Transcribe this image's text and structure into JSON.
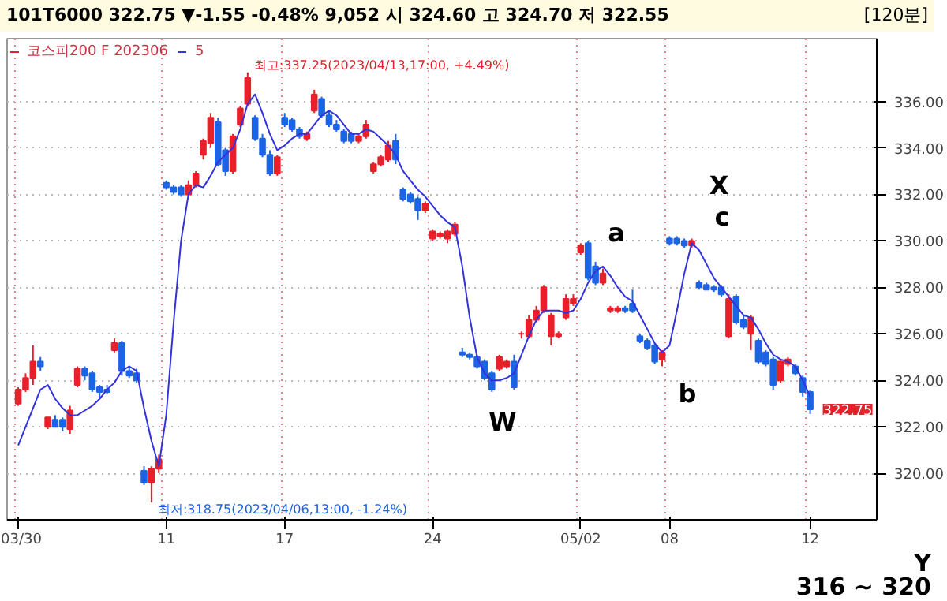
{
  "chart_data": {
    "type": "candlestick",
    "title": "101T6000  322.75  ▼-1.55  -0.48%  9,052  시 324.60  고 324.70  저 322.55",
    "subtitle": "코스피200 F 202306",
    "categories": [
      "03/30",
      null,
      null,
      null,
      null,
      null,
      null,
      null,
      null,
      null,
      null,
      null,
      null,
      null,
      null,
      null,
      null,
      null,
      null,
      null,
      "11",
      null,
      null,
      null,
      null,
      null,
      null,
      null,
      null,
      null,
      null,
      null,
      null,
      null,
      null,
      null,
      "17",
      null,
      null,
      null,
      null,
      null,
      null,
      null,
      null,
      null,
      null,
      null,
      null,
      null,
      null,
      null,
      null,
      null,
      null,
      null,
      "24",
      null,
      null,
      null,
      null,
      null,
      null,
      null,
      null,
      null,
      null,
      null,
      null,
      null,
      null,
      null,
      null,
      null,
      null,
      null,
      "05/02",
      null,
      null,
      null,
      null,
      null,
      null,
      null,
      null,
      null,
      null,
      null,
      "08",
      null,
      null,
      null,
      null,
      null,
      null,
      null,
      null,
      null,
      null,
      null,
      null,
      null,
      null,
      null,
      null,
      null,
      null,
      "12"
    ],
    "ohlc": [
      [
        323.0,
        323.7,
        322.9,
        323.6
      ],
      [
        323.6,
        324.3,
        323.5,
        324.1
      ],
      [
        324.1,
        325.5,
        323.8,
        324.8
      ],
      [
        324.8,
        325.0,
        324.4,
        324.6
      ],
      [
        322.0,
        322.4,
        321.9,
        322.4
      ],
      [
        322.3,
        322.5,
        322.0,
        322.0
      ],
      [
        322.3,
        322.4,
        321.8,
        322.0
      ],
      [
        321.9,
        322.9,
        321.7,
        322.7
      ],
      [
        323.8,
        324.6,
        323.7,
        324.5
      ],
      [
        324.5,
        324.6,
        324.0,
        324.2
      ],
      [
        324.3,
        324.4,
        323.5,
        323.6
      ],
      [
        323.7,
        323.8,
        323.2,
        323.5
      ],
      [
        323.6,
        323.8,
        323.4,
        323.5
      ],
      [
        325.3,
        325.8,
        325.2,
        325.6
      ],
      [
        325.6,
        325.7,
        324.2,
        324.4
      ],
      [
        324.4,
        324.6,
        324.1,
        324.2
      ],
      [
        324.3,
        324.5,
        323.9,
        324.0
      ],
      [
        320.1,
        320.3,
        319.5,
        319.6
      ],
      [
        319.6,
        320.3,
        318.75,
        320.2
      ],
      [
        320.2,
        320.8,
        320.0,
        320.6
      ],
      [
        332.5,
        332.6,
        332.2,
        332.3
      ],
      [
        332.3,
        332.4,
        332.0,
        332.1
      ],
      [
        332.3,
        332.4,
        331.9,
        332.0
      ],
      [
        332.0,
        332.6,
        331.9,
        332.4
      ],
      [
        332.4,
        333.0,
        332.3,
        332.9
      ],
      [
        333.7,
        334.4,
        333.5,
        334.3
      ],
      [
        334.2,
        335.5,
        334.0,
        335.3
      ],
      [
        335.1,
        335.3,
        333.2,
        333.3
      ],
      [
        333.9,
        334.0,
        332.8,
        333.0
      ],
      [
        333.0,
        334.6,
        332.9,
        334.5
      ],
      [
        335.0,
        335.8,
        334.9,
        335.7
      ],
      [
        335.9,
        337.25,
        335.8,
        337.0
      ],
      [
        335.3,
        335.4,
        334.3,
        334.4
      ],
      [
        334.4,
        334.6,
        333.6,
        333.7
      ],
      [
        333.7,
        333.9,
        332.8,
        332.9
      ],
      [
        332.9,
        333.7,
        332.8,
        333.6
      ],
      [
        335.3,
        335.5,
        334.9,
        335.0
      ],
      [
        335.2,
        335.3,
        334.7,
        334.8
      ],
      [
        334.8,
        334.9,
        334.4,
        334.5
      ],
      [
        334.4,
        334.7,
        334.3,
        334.6
      ],
      [
        335.6,
        336.5,
        335.5,
        336.3
      ],
      [
        336.1,
        336.2,
        335.3,
        335.4
      ],
      [
        335.4,
        335.6,
        334.9,
        335.0
      ],
      [
        335.0,
        335.2,
        334.7,
        334.8
      ],
      [
        334.7,
        334.8,
        334.2,
        334.3
      ],
      [
        334.6,
        334.7,
        334.2,
        334.3
      ],
      [
        334.3,
        334.6,
        334.2,
        334.5
      ],
      [
        334.5,
        335.2,
        334.4,
        335.0
      ],
      [
        333.0,
        333.4,
        332.9,
        333.3
      ],
      [
        333.3,
        333.7,
        333.2,
        333.6
      ],
      [
        333.5,
        334.3,
        333.4,
        334.1
      ],
      [
        334.3,
        334.6,
        333.3,
        333.5
      ],
      [
        332.2,
        332.3,
        331.7,
        331.8
      ],
      [
        332.0,
        332.1,
        331.6,
        331.7
      ],
      [
        331.8,
        331.9,
        330.9,
        331.3
      ],
      [
        331.3,
        331.7,
        331.2,
        331.6
      ],
      [
        330.1,
        330.5,
        330.0,
        330.4
      ],
      [
        330.2,
        330.4,
        330.1,
        330.3
      ],
      [
        330.1,
        330.5,
        329.9,
        330.4
      ],
      [
        330.3,
        330.8,
        330.2,
        330.7
      ],
      [
        325.2,
        325.4,
        325.0,
        325.1
      ],
      [
        325.1,
        325.2,
        324.9,
        325.0
      ],
      [
        325.0,
        325.1,
        324.5,
        324.6
      ],
      [
        324.8,
        324.9,
        324.0,
        324.1
      ],
      [
        324.3,
        324.4,
        323.5,
        323.6
      ],
      [
        324.5,
        325.1,
        324.4,
        325.0
      ],
      [
        324.6,
        324.9,
        324.5,
        324.8
      ],
      [
        324.8,
        325.1,
        323.6,
        323.7
      ],
      [
        326.0,
        326.1,
        325.8,
        326.0
      ],
      [
        325.9,
        326.8,
        325.8,
        326.6
      ],
      [
        326.6,
        327.2,
        326.5,
        327.0
      ],
      [
        327.0,
        328.1,
        326.9,
        328.0
      ],
      [
        325.9,
        326.9,
        325.5,
        326.8
      ],
      [
        325.9,
        326.1,
        325.8,
        326.0
      ],
      [
        326.7,
        327.7,
        326.6,
        327.5
      ],
      [
        327.3,
        327.7,
        327.2,
        327.5
      ],
      [
        329.5,
        329.9,
        329.4,
        329.8
      ],
      [
        329.9,
        330.0,
        328.3,
        328.4
      ],
      [
        328.9,
        329.1,
        328.1,
        328.2
      ],
      [
        328.2,
        328.8,
        328.1,
        328.6
      ],
      [
        327.0,
        327.2,
        326.9,
        327.1
      ],
      [
        327.0,
        327.2,
        326.9,
        327.1
      ],
      [
        327.1,
        327.2,
        326.9,
        327.0
      ],
      [
        327.3,
        327.9,
        326.9,
        327.0
      ],
      [
        325.9,
        326.0,
        325.6,
        325.7
      ],
      [
        325.7,
        325.8,
        325.3,
        325.4
      ],
      [
        325.5,
        325.6,
        324.7,
        324.8
      ],
      [
        324.9,
        325.3,
        324.6,
        325.2
      ],
      [
        330.1,
        330.2,
        329.8,
        329.9
      ],
      [
        330.1,
        330.2,
        329.8,
        329.9
      ],
      [
        330.0,
        330.1,
        329.7,
        329.8
      ],
      [
        329.8,
        330.1,
        329.7,
        330.0
      ],
      [
        328.2,
        328.3,
        327.9,
        328.0
      ],
      [
        328.1,
        328.2,
        327.9,
        327.9
      ],
      [
        328.0,
        328.1,
        327.8,
        327.9
      ],
      [
        328.0,
        328.1,
        327.6,
        327.7
      ],
      [
        325.9,
        327.7,
        325.8,
        327.5
      ],
      [
        327.6,
        327.7,
        326.4,
        326.5
      ],
      [
        326.6,
        326.8,
        326.2,
        326.3
      ],
      [
        326.0,
        326.8,
        325.3,
        326.7
      ],
      [
        325.7,
        325.8,
        324.7,
        324.8
      ],
      [
        325.2,
        325.3,
        324.6,
        324.7
      ],
      [
        324.9,
        325.0,
        323.6,
        323.8
      ],
      [
        324.0,
        324.9,
        323.9,
        324.8
      ],
      [
        324.7,
        325.0,
        324.6,
        324.9
      ],
      [
        324.6,
        324.7,
        324.2,
        324.3
      ],
      [
        324.1,
        324.2,
        323.3,
        323.5
      ],
      [
        323.5,
        323.6,
        322.55,
        322.75
      ]
    ],
    "colors": [
      "#e8202a",
      "#e8202a",
      "#e8202a",
      "#1c64e6",
      "#e8202a",
      "#1c64e6",
      "#1c64e6",
      "#e8202a",
      "#e8202a",
      "#1c64e6",
      "#1c64e6",
      "#1c64e6",
      "#1c64e6",
      "#e8202a",
      "#1c64e6",
      "#1c64e6",
      "#1c64e6",
      "#1c64e6",
      "#e8202a",
      "#e8202a",
      "#1c64e6",
      "#1c64e6",
      "#1c64e6",
      "#e8202a",
      "#e8202a",
      "#e8202a",
      "#e8202a",
      "#1c64e6",
      "#1c64e6",
      "#e8202a",
      "#e8202a",
      "#e8202a",
      "#1c64e6",
      "#1c64e6",
      "#1c64e6",
      "#e8202a",
      "#1c64e6",
      "#1c64e6",
      "#1c64e6",
      "#e8202a",
      "#e8202a",
      "#1c64e6",
      "#1c64e6",
      "#1c64e6",
      "#1c64e6",
      "#1c64e6",
      "#e8202a",
      "#e8202a",
      "#e8202a",
      "#e8202a",
      "#e8202a",
      "#1c64e6",
      "#1c64e6",
      "#1c64e6",
      "#1c64e6",
      "#e8202a",
      "#e8202a",
      "#e8202a",
      "#e8202a",
      "#e8202a",
      "#1c64e6",
      "#1c64e6",
      "#1c64e6",
      "#1c64e6",
      "#1c64e6",
      "#e8202a",
      "#e8202a",
      "#1c64e6",
      "#e8202a",
      "#e8202a",
      "#e8202a",
      "#e8202a",
      "#e8202a",
      "#e8202a",
      "#e8202a",
      "#e8202a",
      "#e8202a",
      "#1c64e6",
      "#1c64e6",
      "#e8202a",
      "#e8202a",
      "#e8202a",
      "#1c64e6",
      "#1c64e6",
      "#1c64e6",
      "#1c64e6",
      "#1c64e6",
      "#e8202a",
      "#1c64e6",
      "#1c64e6",
      "#1c64e6",
      "#e8202a",
      "#1c64e6",
      "#1c64e6",
      "#1c64e6",
      "#1c64e6",
      "#e8202a",
      "#1c64e6",
      "#1c64e6",
      "#e8202a",
      "#1c64e6",
      "#1c64e6",
      "#1c64e6",
      "#e8202a",
      "#e8202a",
      "#1c64e6",
      "#1c64e6",
      "#1c64e6"
    ],
    "series": [
      {
        "name": "5",
        "type": "line",
        "color": "#3333dd",
        "values": [
          321.2,
          322.0,
          322.8,
          323.6,
          323.8,
          323.2,
          322.8,
          322.5,
          322.5,
          322.7,
          322.9,
          323.2,
          323.6,
          323.9,
          324.4,
          324.6,
          324.4,
          322.8,
          321.4,
          320.3,
          322.5,
          326.5,
          330.0,
          332.0,
          332.4,
          332.3,
          332.8,
          333.4,
          333.7,
          334.0,
          334.8,
          335.9,
          336.3,
          335.5,
          334.6,
          333.9,
          334.1,
          334.4,
          334.6,
          334.6,
          335.0,
          335.4,
          335.6,
          335.4,
          335.0,
          334.6,
          334.6,
          334.8,
          334.7,
          334.4,
          334.1,
          333.7,
          333.0,
          332.6,
          332.2,
          331.9,
          331.5,
          331.1,
          330.8,
          330.6,
          328.9,
          326.7,
          325.0,
          324.3,
          324.0,
          324.0,
          324.1,
          324.3,
          325.1,
          325.9,
          326.6,
          327.0,
          327.0,
          327.0,
          326.9,
          327.0,
          327.5,
          328.2,
          328.7,
          328.9,
          328.5,
          328.0,
          327.6,
          327.4,
          326.8,
          326.2,
          325.6,
          325.2,
          325.5,
          327.0,
          328.6,
          329.9,
          329.6,
          329.0,
          328.4,
          328.0,
          327.6,
          327.2,
          326.8,
          326.7,
          326.2,
          325.6,
          325.1,
          324.9,
          324.8,
          324.6,
          324.0,
          323.3
        ]
      }
    ],
    "ylim": [
      318.0,
      338.7
    ],
    "yticks": [
      {
        "value": 320,
        "label": "320.00"
      },
      {
        "value": 322,
        "label": "322.00"
      },
      {
        "value": 324,
        "label": "324.00"
      },
      {
        "value": 326,
        "label": "326.00"
      },
      {
        "value": 328,
        "label": "328.00"
      },
      {
        "value": 330,
        "label": "330.00"
      },
      {
        "value": 332,
        "label": "332.00"
      },
      {
        "value": 334,
        "label": "334.00"
      },
      {
        "value": 336,
        "label": "336.00"
      }
    ],
    "grid": true,
    "legend": "top left",
    "annotations": [
      "최고:337.25(2023/04/13,17:00, +4.49%)",
      "최저:318.75(2023/04/06,13:00, -1.24%)",
      "322.75",
      "W",
      "a",
      "b",
      "X",
      "c",
      "[120분]",
      "Y",
      "316 ~ 320"
    ]
  }
}
